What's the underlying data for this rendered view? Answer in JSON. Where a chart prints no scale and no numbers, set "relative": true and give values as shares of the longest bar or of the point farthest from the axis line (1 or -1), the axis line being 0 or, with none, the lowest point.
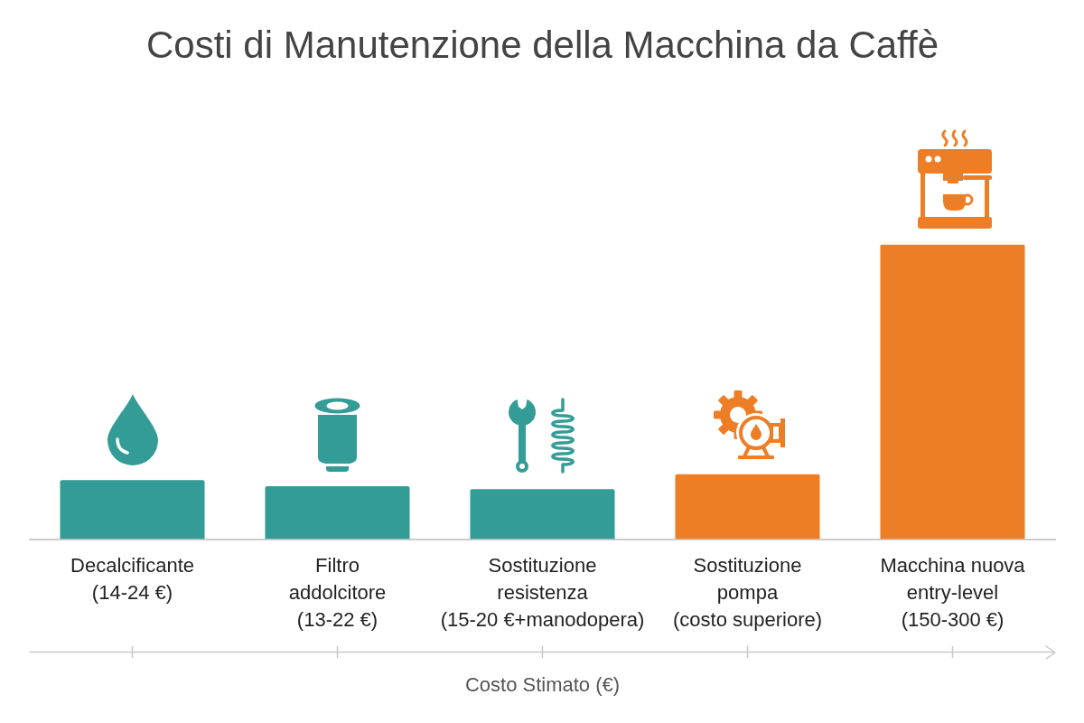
{
  "chart_data": {
    "type": "bar",
    "title": "Costi di Manutenzione della Macchina da Caffè",
    "xlabel": "Costo Stimato (€)",
    "categories": [
      "Decalcificante\n(14-24 €)",
      "Filtro\naddolcitore\n(13-22 €)",
      "Sostituzione\nresistenza\n(15-20 €+manodopera)",
      "Sostituzione\npompa\n(costo superiore)",
      "Macchina nuova\nentry-level\n(150-300 €)"
    ],
    "values": [
      0.2,
      0.18,
      0.17,
      0.22,
      1
    ],
    "colors": [
      "#339c96",
      "#339c96",
      "#339c96",
      "#ee7e26",
      "#ee7e26"
    ],
    "relative": true
  }
}
